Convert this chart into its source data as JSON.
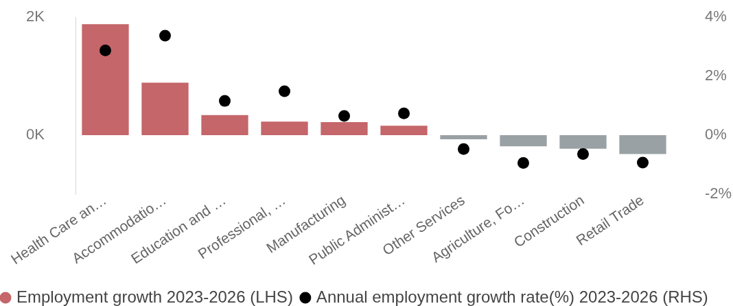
{
  "chart_data": {
    "type": "bar",
    "categories": [
      "Health Care an…",
      "Accommodatio…",
      "Education and …",
      "Professional, …",
      "Manufacturing",
      "Public Administ…",
      "Other Services",
      "Agriculture, Fo…",
      "Construction",
      "Retail Trade"
    ],
    "series": [
      {
        "name": "Employment growth 2023-2026 (LHS)",
        "color": "#c4666a",
        "colors": [
          "#c4666a",
          "#c4666a",
          "#c4666a",
          "#c4666a",
          "#c4666a",
          "#c4666a",
          "#99a1a4",
          "#99a1a4",
          "#99a1a4",
          "#99a1a4"
        ],
        "values": [
          1880,
          890,
          340,
          230,
          220,
          160,
          -70,
          -190,
          -230,
          -320
        ]
      },
      {
        "name": "Annual employment growth rate(%) 2023-2026 (RHS)",
        "type": "scatter",
        "axis": "y2",
        "color": "#000000",
        "values": [
          2.87,
          3.37,
          1.16,
          1.49,
          0.65,
          0.74,
          -0.47,
          -0.94,
          -0.64,
          -0.93
        ]
      }
    ],
    "ylim": [
      -1000,
      2000
    ],
    "yticks": [
      {
        "value": 0,
        "label": "0K"
      },
      {
        "value": 2000,
        "label": "2K"
      }
    ],
    "y2lim": [
      -2,
      4
    ],
    "y2ticks": [
      {
        "value": -2,
        "label": "-2%"
      },
      {
        "value": 0,
        "label": "0%"
      },
      {
        "value": 2,
        "label": "2%"
      },
      {
        "value": 4,
        "label": "4%"
      }
    ],
    "legend": "bottom left",
    "marker": "circle"
  }
}
